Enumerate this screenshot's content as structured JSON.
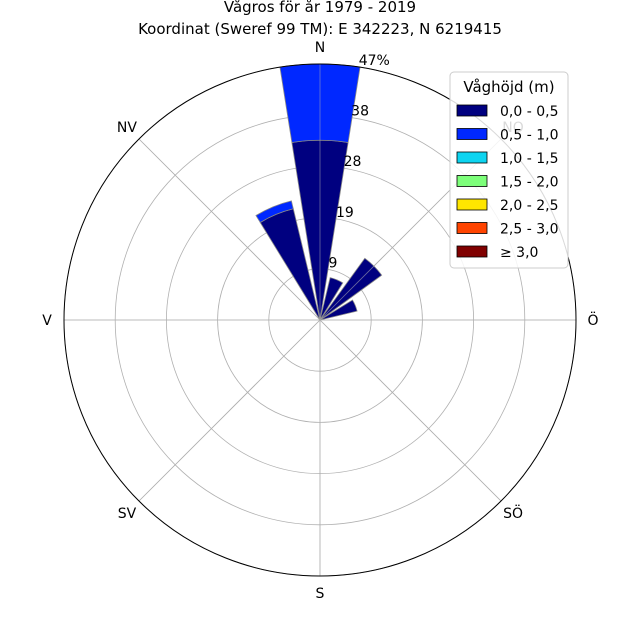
{
  "chart_data": {
    "type": "windrose",
    "title": "Vågros för år 1979 - 2019",
    "subtitle": "Koordinat (Sweref 99 TM): E 342223, N 6219415",
    "direction_labels": [
      "N",
      "NV",
      "V",
      "SV",
      "S",
      "SÖ",
      "Ö",
      "NO"
    ],
    "direction_angles_deg": [
      0,
      315,
      270,
      225,
      180,
      135,
      90,
      45
    ],
    "radial_ticks": [
      "9",
      "19",
      "28",
      "38",
      "47%"
    ],
    "radial_tick_values": [
      9.4,
      18.8,
      28.2,
      37.6,
      47.0
    ],
    "rmax": 47.0,
    "grid": true,
    "legend": {
      "title": "Våghöjd (m)",
      "placement": "top-right",
      "entries": [
        {
          "label": "0,0 - 0,5",
          "color": "#000080"
        },
        {
          "label": "0,5 - 1,0",
          "color": "#0028ff"
        },
        {
          "label": "1,0 - 1,5",
          "color": "#0dd4f0"
        },
        {
          "label": "1,5 - 2,0",
          "color": "#7dff7a"
        },
        {
          "label": "2,0 - 2,5",
          "color": "#ffe600"
        },
        {
          "label": "2,5 - 3,0",
          "color": "#ff4400"
        },
        {
          "label": "≥ 3,0",
          "color": "#800000"
        }
      ]
    },
    "bar_width_deg": 18,
    "sectors": [
      {
        "direction_deg": 0,
        "stacks": [
          33.0,
          14.0
        ]
      },
      {
        "direction_deg": 22.5,
        "stacks": [
          8.0
        ]
      },
      {
        "direction_deg": 45,
        "stacks": [
          14.0
        ]
      },
      {
        "direction_deg": 67.5,
        "stacks": [
          7.0
        ]
      },
      {
        "direction_deg": 337.5,
        "stacks": [
          21.0,
          1.5
        ]
      }
    ]
  }
}
